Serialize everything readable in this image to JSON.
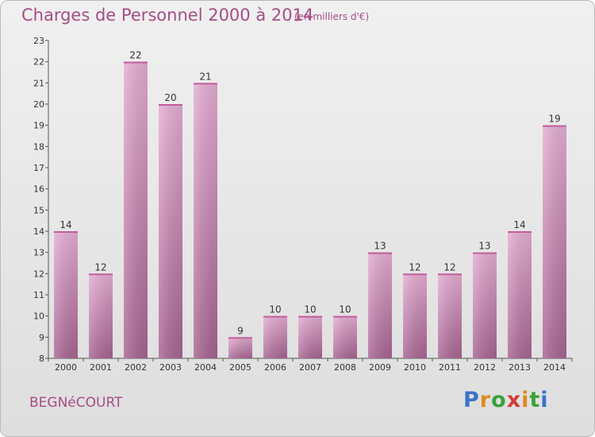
{
  "header": {
    "title": "Charges de Personnel 2000 à 2014",
    "subtitle": "(en milliers d'€)"
  },
  "footer": {
    "commune": "BEGNéCOURT",
    "brand": "Proxiti"
  },
  "colors": {
    "bar_top": "#e2a8d0",
    "bar_bottom": "#a86492",
    "text_accent": "#a64d86"
  },
  "chart_data": {
    "type": "bar",
    "title": "Charges de Personnel 2000 à 2014",
    "subtitle": "(en milliers d'€)",
    "xlabel": "",
    "ylabel": "",
    "categories": [
      "2000",
      "2001",
      "2002",
      "2003",
      "2004",
      "2005",
      "2006",
      "2007",
      "2008",
      "2009",
      "2010",
      "2011",
      "2012",
      "2013",
      "2014"
    ],
    "values": [
      14,
      12,
      22,
      20,
      21,
      9,
      10,
      10,
      10,
      13,
      12,
      12,
      13,
      14,
      19
    ],
    "ylim": [
      8,
      23
    ],
    "yticks": [
      8,
      9,
      10,
      11,
      12,
      13,
      14,
      15,
      16,
      17,
      18,
      19,
      20,
      21,
      22,
      23
    ],
    "grid": false,
    "data_labels": true
  }
}
